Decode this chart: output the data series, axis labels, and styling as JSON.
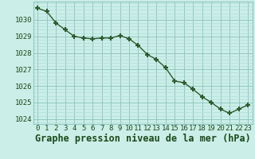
{
  "x": [
    0,
    1,
    2,
    3,
    4,
    5,
    6,
    7,
    8,
    9,
    10,
    11,
    12,
    13,
    14,
    15,
    16,
    17,
    18,
    19,
    20,
    21,
    22,
    23
  ],
  "y": [
    1030.7,
    1030.5,
    1029.8,
    1029.4,
    1029.0,
    1028.9,
    1028.85,
    1028.9,
    1028.9,
    1029.05,
    1028.85,
    1028.45,
    1027.9,
    1027.6,
    1027.1,
    1026.3,
    1026.2,
    1025.8,
    1025.35,
    1025.0,
    1024.6,
    1024.35,
    1024.6,
    1024.85
  ],
  "line_color": "#2d5a2d",
  "marker_color": "#2d5a2d",
  "bg_color": "#cceee8",
  "grid_minor_color": "#b0ddd8",
  "grid_major_color": "#90c8c0",
  "text_color": "#1a4a1a",
  "xlabel": "Graphe pression niveau de la mer (hPa)",
  "ylim": [
    1023.7,
    1031.1
  ],
  "xlim": [
    -0.5,
    23.5
  ],
  "yticks": [
    1024,
    1025,
    1026,
    1027,
    1028,
    1029,
    1030
  ],
  "xticks": [
    0,
    1,
    2,
    3,
    4,
    5,
    6,
    7,
    8,
    9,
    10,
    11,
    12,
    13,
    14,
    15,
    16,
    17,
    18,
    19,
    20,
    21,
    22,
    23
  ],
  "tick_fontsize": 6.5,
  "xlabel_fontsize": 8.5
}
